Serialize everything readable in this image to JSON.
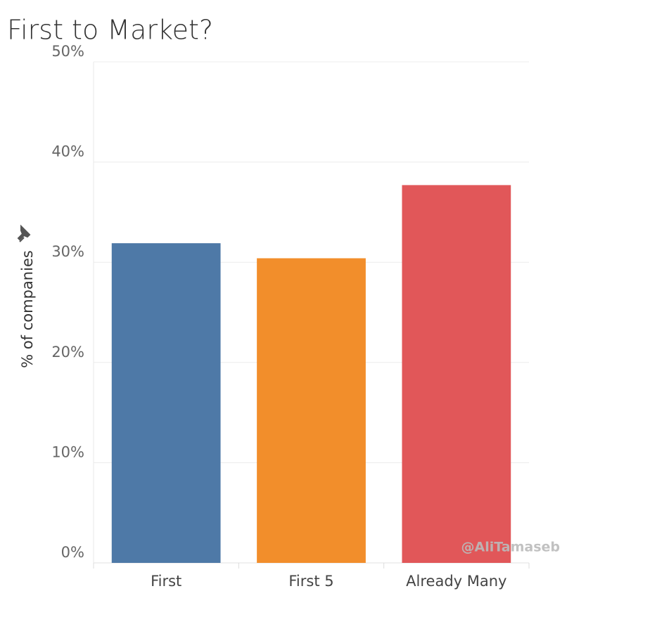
{
  "chart_data": {
    "type": "bar",
    "title": "First to Market?",
    "y_label": "% of companies",
    "categories": [
      "First",
      "First 5",
      "Already Many"
    ],
    "values": [
      31.9,
      30.4,
      37.7
    ],
    "colors": [
      "#4e79a7",
      "#f28e2b",
      "#e15759"
    ],
    "ylim": [
      0,
      50
    ],
    "yticks": [
      {
        "value": 0,
        "label": "0%"
      },
      {
        "value": 10,
        "label": "10%"
      },
      {
        "value": 20,
        "label": "20%"
      },
      {
        "value": 30,
        "label": "30%"
      },
      {
        "value": 40,
        "label": "40%"
      },
      {
        "value": 50,
        "label": "50%"
      }
    ],
    "grid": true,
    "annotation": "@AliTamaseb"
  }
}
